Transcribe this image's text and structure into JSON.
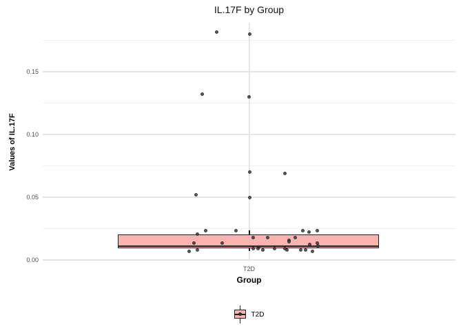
{
  "title": "IL.17F by Group",
  "y_axis": {
    "label": "Values of IL.17F",
    "tick_labels": [
      "0.00",
      "0.05",
      "0.10",
      "0.15"
    ]
  },
  "x_axis": {
    "label": "Group",
    "tick_labels": [
      "T2D"
    ]
  },
  "legend": {
    "items": [
      {
        "label": "T2D",
        "fill": "#f9b4b0"
      }
    ]
  },
  "colors": {
    "box_fill": "#f9b4b0",
    "box_border": "#1f1f1f",
    "point": "#3c3c3c",
    "grid_major": "#e4e4e4",
    "grid_minor": "#f0f0f0",
    "tick_text": "#4d4d4d"
  },
  "chart_data": {
    "type": "boxplot",
    "title": "IL.17F by Group",
    "xlabel": "Group",
    "ylabel": "Values of IL.17F",
    "categories": [
      "T2D"
    ],
    "ylim": [
      -0.001,
      0.189
    ],
    "yticks_major": [
      0,
      0.05,
      0.1,
      0.15
    ],
    "yticks_minor": [
      0.025,
      0.075,
      0.125,
      0.175
    ],
    "grid": true,
    "legend_position": "bottom",
    "box": {
      "group": "T2D",
      "q1": 0.0096,
      "median": 0.0108,
      "q3": 0.0201,
      "whisker_low": 0.007,
      "whisker_high": 0.0236
    },
    "points": [
      {
        "x": 314,
        "v": 0.1815
      },
      {
        "x": 362,
        "v": 0.18
      },
      {
        "x": 293,
        "v": 0.132
      },
      {
        "x": 361,
        "v": 0.13
      },
      {
        "x": 362,
        "v": 0.0698
      },
      {
        "x": 413,
        "v": 0.0687
      },
      {
        "x": 284,
        "v": 0.0517
      },
      {
        "x": 362,
        "v": 0.05
      },
      {
        "x": 286,
        "v": 0.0206
      },
      {
        "x": 298,
        "v": 0.0231
      },
      {
        "x": 342,
        "v": 0.0231
      },
      {
        "x": 281,
        "v": 0.0136
      },
      {
        "x": 322,
        "v": 0.0136
      },
      {
        "x": 367,
        "v": 0.0181
      },
      {
        "x": 388,
        "v": 0.0176
      },
      {
        "x": 367,
        "v": 0.0093
      },
      {
        "x": 375,
        "v": 0.0104
      },
      {
        "x": 374,
        "v": 0.0088
      },
      {
        "x": 381,
        "v": 0.0077
      },
      {
        "x": 398,
        "v": 0.0088
      },
      {
        "x": 274,
        "v": 0.007
      },
      {
        "x": 286,
        "v": 0.0081
      },
      {
        "x": 439,
        "v": 0.0236
      },
      {
        "x": 448,
        "v": 0.0225
      },
      {
        "x": 460,
        "v": 0.0231
      },
      {
        "x": 428,
        "v": 0.0181
      },
      {
        "x": 419,
        "v": 0.0159
      },
      {
        "x": 419,
        "v": 0.0143
      },
      {
        "x": 449,
        "v": 0.0121
      },
      {
        "x": 460,
        "v": 0.0132
      },
      {
        "x": 461,
        "v": 0.011
      },
      {
        "x": 413,
        "v": 0.0088
      },
      {
        "x": 416,
        "v": 0.0077
      },
      {
        "x": 436,
        "v": 0.0077
      },
      {
        "x": 443,
        "v": 0.0082
      },
      {
        "x": 453,
        "v": 0.0071
      }
    ]
  }
}
